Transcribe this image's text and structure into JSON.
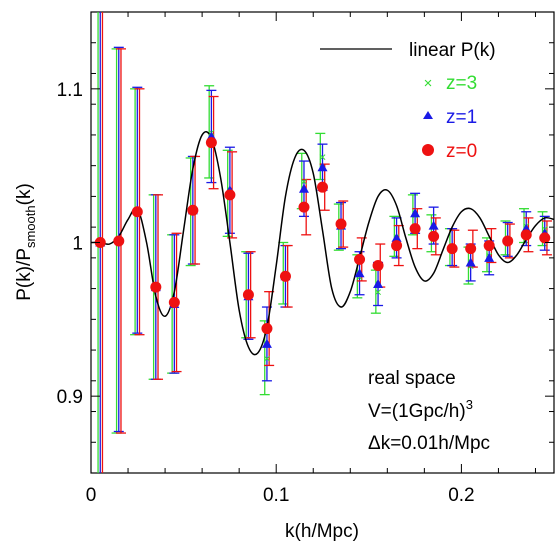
{
  "chart_data": {
    "type": "scatter",
    "xlabel": "k(h/Mpc)",
    "ylabel_main": "P(k)/P",
    "ylabel_sub": "smooth",
    "ylabel_tail": "(k)",
    "xlim": [
      0,
      0.25
    ],
    "ylim": [
      0.85,
      1.15
    ],
    "xticks": [
      {
        "value": 0,
        "label": "0"
      },
      {
        "value": 0.1,
        "label": "0.1"
      },
      {
        "value": 0.2,
        "label": "0.2"
      }
    ],
    "yticks": [
      {
        "value": 0.9,
        "label": "0.9"
      },
      {
        "value": 1.0,
        "label": "1"
      },
      {
        "value": 1.1,
        "label": "1.1"
      }
    ],
    "grid": false,
    "legend_position": "top-right",
    "legend": [
      {
        "label": "linear P(k)",
        "marker": "line",
        "color": "#000000"
      },
      {
        "label": "z=3",
        "marker": "x",
        "color": "#33dd33"
      },
      {
        "label": "z=1",
        "marker": "triangle",
        "color": "#1a1ae6"
      },
      {
        "label": "z=0",
        "marker": "circle",
        "color": "#ee1111"
      }
    ],
    "annotations": {
      "line1": "real space",
      "line2_prefix": "V=(1Gpc/h)",
      "line2_sup": "3",
      "line3": "Δk=0.01h/Mpc"
    },
    "x": [
      0.005,
      0.015,
      0.025,
      0.035,
      0.045,
      0.055,
      0.065,
      0.075,
      0.085,
      0.095,
      0.105,
      0.115,
      0.125,
      0.135,
      0.145,
      0.155,
      0.165,
      0.175,
      0.185,
      0.195,
      0.205,
      0.215,
      0.225,
      0.235,
      0.245
    ],
    "series": [
      {
        "name": "z=3",
        "marker": "x",
        "color": "#33dd33",
        "values": [
          1.0,
          1.001,
          1.02,
          0.971,
          0.96,
          1.02,
          1.072,
          1.032,
          0.966,
          0.925,
          0.98,
          1.04,
          1.056,
          1.01,
          0.978,
          0.968,
          1.004,
          1.018,
          1.006,
          0.997,
          0.985,
          0.992,
          1.003,
          1.011,
          1.009
        ],
        "errors": [
          0.16,
          0.125,
          0.08,
          0.06,
          0.045,
          0.035,
          0.03,
          0.028,
          0.028,
          0.024,
          0.02,
          0.018,
          0.015,
          0.015,
          0.014,
          0.014,
          0.013,
          0.013,
          0.012,
          0.012,
          0.012,
          0.011,
          0.011,
          0.011,
          0.011
        ]
      },
      {
        "name": "z=1",
        "marker": "triangle",
        "color": "#1a1ae6",
        "values": [
          1.0,
          1.002,
          1.021,
          0.971,
          0.96,
          1.021,
          1.069,
          1.034,
          0.965,
          0.934,
          0.978,
          1.035,
          1.049,
          1.011,
          0.98,
          0.973,
          1.003,
          1.019,
          1.011,
          0.997,
          0.987,
          0.99,
          1.002,
          1.009,
          1.006
        ],
        "errors": [
          0.16,
          0.125,
          0.08,
          0.06,
          0.045,
          0.035,
          0.03,
          0.028,
          0.028,
          0.024,
          0.02,
          0.018,
          0.015,
          0.015,
          0.014,
          0.014,
          0.013,
          0.013,
          0.012,
          0.012,
          0.012,
          0.011,
          0.011,
          0.011,
          0.011
        ]
      },
      {
        "name": "z=0",
        "marker": "circle",
        "color": "#ee1111",
        "values": [
          1.0,
          1.001,
          1.02,
          0.971,
          0.961,
          1.021,
          1.065,
          1.031,
          0.966,
          0.944,
          0.978,
          1.023,
          1.036,
          1.012,
          0.989,
          0.985,
          0.998,
          1.009,
          1.004,
          0.996,
          0.996,
          0.998,
          1.001,
          1.005,
          1.003
        ],
        "errors": [
          0.16,
          0.125,
          0.08,
          0.06,
          0.045,
          0.035,
          0.03,
          0.028,
          0.028,
          0.024,
          0.02,
          0.018,
          0.015,
          0.015,
          0.014,
          0.014,
          0.013,
          0.013,
          0.012,
          0.012,
          0.012,
          0.011,
          0.011,
          0.011,
          0.011
        ]
      }
    ],
    "linear_pk": {
      "name": "linear P(k)",
      "x": [
        0.0,
        0.005,
        0.01,
        0.015,
        0.02,
        0.025,
        0.03,
        0.035,
        0.04,
        0.045,
        0.05,
        0.055,
        0.06,
        0.065,
        0.07,
        0.075,
        0.08,
        0.085,
        0.09,
        0.095,
        0.1,
        0.105,
        0.11,
        0.115,
        0.12,
        0.125,
        0.13,
        0.135,
        0.14,
        0.145,
        0.15,
        0.155,
        0.16,
        0.165,
        0.17,
        0.175,
        0.18,
        0.185,
        0.19,
        0.195,
        0.2,
        0.205,
        0.21,
        0.215,
        0.22,
        0.225,
        0.23,
        0.235,
        0.24,
        0.245,
        0.25
      ],
      "values": [
        1.0,
        1.0,
        0.999,
        1.004,
        1.015,
        1.022,
        1.0,
        0.965,
        0.952,
        0.968,
        1.008,
        1.048,
        1.07,
        1.068,
        1.042,
        1.0,
        0.956,
        0.932,
        0.928,
        0.945,
        0.985,
        1.03,
        1.055,
        1.06,
        1.045,
        1.008,
        0.97,
        0.958,
        0.968,
        0.99,
        1.013,
        1.03,
        1.034,
        1.024,
        1.003,
        0.984,
        0.975,
        0.98,
        0.995,
        1.01,
        1.02,
        1.022,
        1.016,
        1.004,
        0.992,
        0.987,
        0.992,
        1.002,
        1.011,
        1.016,
        1.015
      ]
    }
  }
}
